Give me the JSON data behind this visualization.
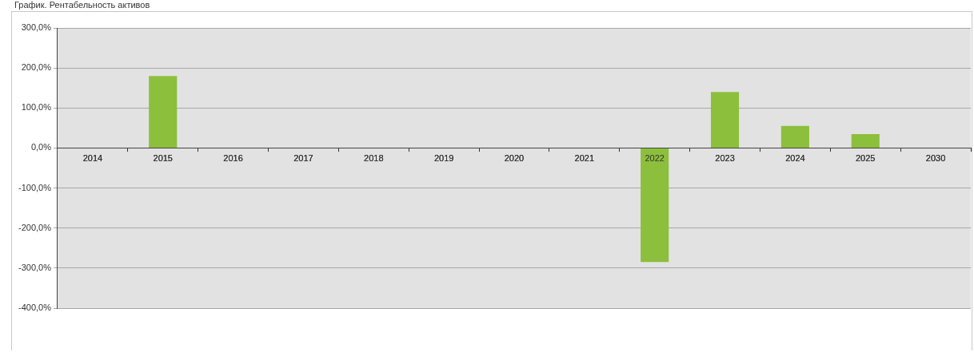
{
  "chart_data": {
    "type": "bar",
    "title": "График. Рентабельность активов",
    "categories": [
      "2014",
      "2015",
      "2016",
      "2017",
      "2018",
      "2019",
      "2020",
      "2021",
      "2022",
      "2023",
      "2024",
      "2025",
      "2030"
    ],
    "values": [
      null,
      180,
      null,
      null,
      null,
      null,
      null,
      null,
      -285,
      140,
      55,
      35,
      null
    ],
    "color": "#8cbf3c",
    "ylim": [
      -400,
      300
    ],
    "yticks": [
      {
        "value": -400,
        "label": "-400,0%"
      },
      {
        "value": -300,
        "label": "-300,0%"
      },
      {
        "value": -200,
        "label": "-200,0%"
      },
      {
        "value": -100,
        "label": "-100,0%"
      },
      {
        "value": 0,
        "label": "0,0%"
      },
      {
        "value": 100,
        "label": "100,0%"
      },
      {
        "value": 200,
        "label": "200,0%"
      },
      {
        "value": 300,
        "label": "300,0%"
      }
    ],
    "grid": "y",
    "legend": false
  }
}
